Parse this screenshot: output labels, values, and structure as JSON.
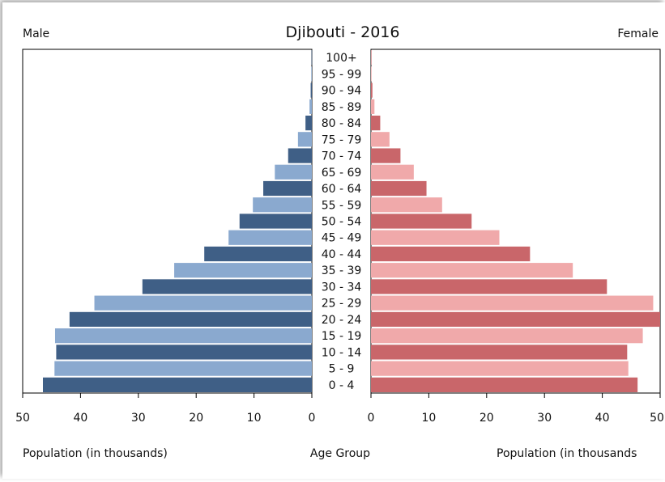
{
  "chart_data": {
    "type": "bar",
    "title": "Djibouti - 2016",
    "left_label": "Male",
    "right_label": "Female",
    "center_axis_label": "Age Group",
    "left_axis_label": "Population (in thousands)",
    "right_axis_label": "Population (in thousands",
    "categories": [
      "0 - 4",
      "5 - 9",
      "10 - 14",
      "15 - 19",
      "20 - 24",
      "25 - 29",
      "30 - 34",
      "35 - 39",
      "40 - 44",
      "45 - 49",
      "50 - 54",
      "55 - 59",
      "60 - 64",
      "65 - 69",
      "70 - 74",
      "75 - 79",
      "80 - 84",
      "85 - 89",
      "90 - 94",
      "95 - 99",
      "100+"
    ],
    "series": [
      {
        "name": "Male",
        "values": [
          46.5,
          44.5,
          44.2,
          44.4,
          41.9,
          37.6,
          29.3,
          23.8,
          18.6,
          14.4,
          12.5,
          10.2,
          8.4,
          6.4,
          4.1,
          2.4,
          1.1,
          0.4,
          0.2,
          0.1,
          0.05
        ]
      },
      {
        "name": "Female",
        "values": [
          46.1,
          44.5,
          44.3,
          47.0,
          50.0,
          48.8,
          40.8,
          34.9,
          27.5,
          22.2,
          17.4,
          12.3,
          9.6,
          7.4,
          5.1,
          3.2,
          1.6,
          0.6,
          0.25,
          0.1,
          0.05
        ]
      }
    ],
    "xlim": [
      0,
      50
    ],
    "xticks": [
      "50",
      "40",
      "30",
      "20",
      "10",
      "0"
    ],
    "xticks_right": [
      "0",
      "10",
      "20",
      "30",
      "40",
      "50"
    ],
    "colors": {
      "male_dark": "#3f5f86",
      "male_light": "#8aa9cf",
      "female_dark": "#c9666a",
      "female_light": "#f0a9aa"
    }
  }
}
